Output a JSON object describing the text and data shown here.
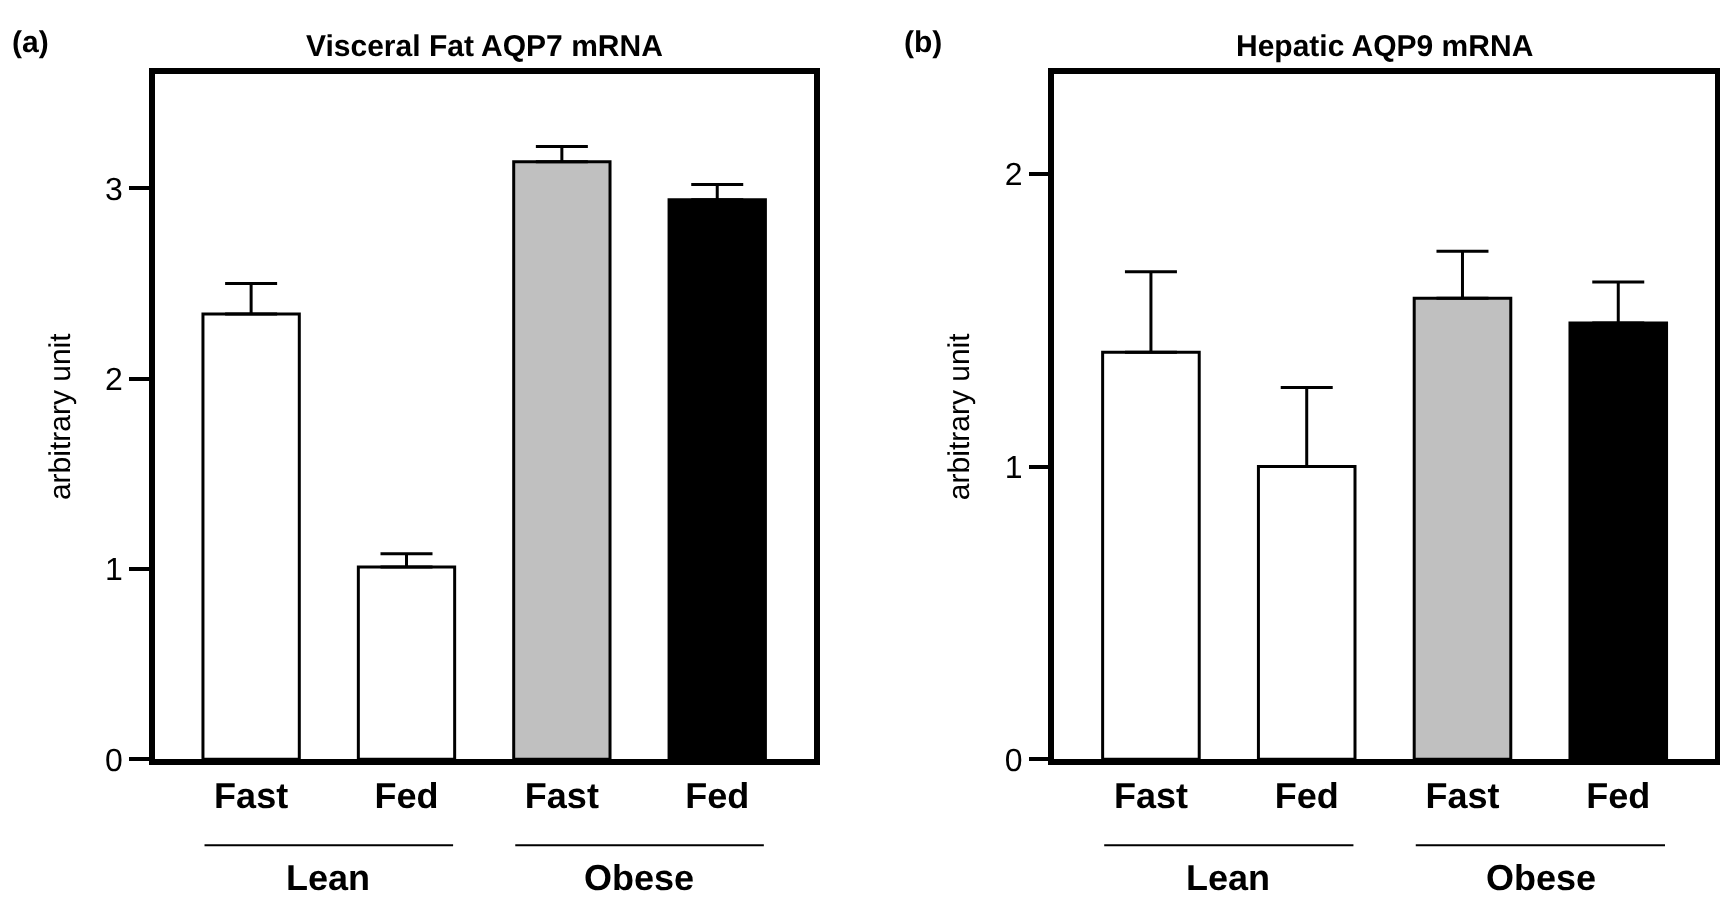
{
  "chart_data": [
    {
      "type": "bar",
      "title": "Visceral Fat AQP7 mRNA",
      "ylabel": "arbitrary unit",
      "categories": [
        "Fast",
        "Fed",
        "Fast",
        "Fed"
      ],
      "values": [
        2.34,
        1.01,
        3.14,
        2.94
      ],
      "colors": [
        "#ffffff",
        "#ffffff",
        "#c0c0c0",
        "#000000"
      ],
      "errors": [
        [
          2.34,
          2.5
        ],
        [
          1.01,
          1.08
        ],
        [
          3.14,
          3.22
        ],
        [
          2.94,
          3.02
        ]
      ],
      "ylim": [
        0,
        3.6
      ],
      "yticks": [
        0,
        1,
        2,
        3
      ],
      "annotations": [
        "(a)",
        "Lean",
        "Obese"
      ]
    },
    {
      "type": "bar",
      "title": "Hepatic AQP9 mRNA",
      "ylabel": "arbitrary unit",
      "categories": [
        "Fast",
        "Fed",
        "Fast",
        "Fed"
      ],
      "values": [
        1.39,
        1.0,
        1.575,
        1.49
      ],
      "colors": [
        "#ffffff",
        "#ffffff",
        "#c0c0c0",
        "#000000"
      ],
      "errors": [
        [
          1.39,
          1.665
        ],
        [
          1.0,
          1.27
        ],
        [
          1.575,
          1.735
        ],
        [
          1.49,
          1.63
        ]
      ],
      "ylim": [
        0,
        2.34
      ],
      "yticks": [
        0,
        1,
        2
      ],
      "annotations": [
        "(b)",
        "Lean",
        "Obese"
      ]
    }
  ]
}
